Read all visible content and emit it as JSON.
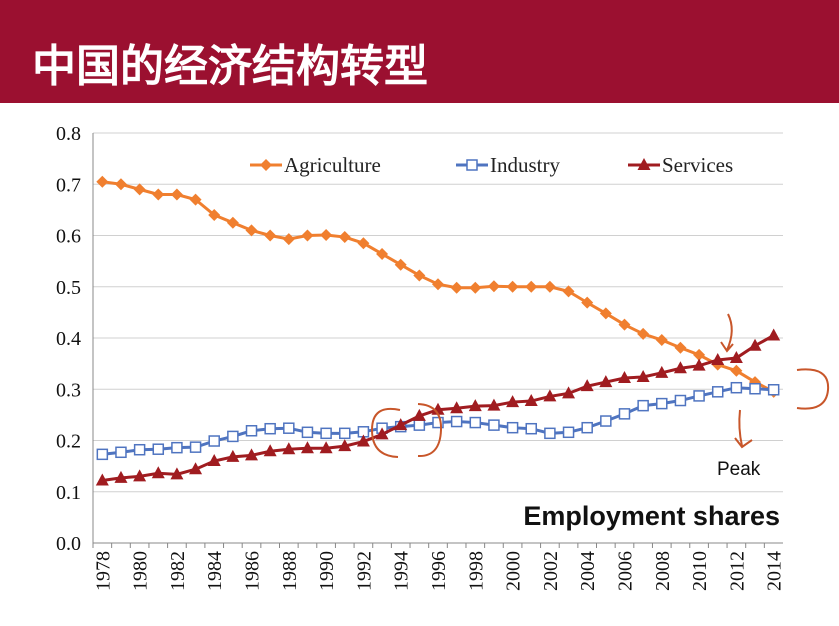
{
  "header": {
    "title": "中国的经济结构转型"
  },
  "chart_data": {
    "type": "line",
    "categories": [
      "1978",
      null,
      "1980",
      null,
      "1982",
      null,
      "1984",
      null,
      "1986",
      null,
      "1988",
      null,
      "1990",
      null,
      "1992",
      null,
      "1994",
      null,
      "1996",
      null,
      "1998",
      null,
      "2000",
      null,
      "2002",
      null,
      "2004",
      null,
      "2006",
      null,
      "2008",
      null,
      "2010",
      null,
      "2012",
      null,
      "2014"
    ],
    "series": [
      {
        "name": "Agriculture",
        "color": "#f07f2f",
        "marker": "diamond",
        "values": [
          0.705,
          0.7,
          0.69,
          0.68,
          0.68,
          0.67,
          0.64,
          0.625,
          0.61,
          0.6,
          0.593,
          0.6,
          0.601,
          0.597,
          0.585,
          0.564,
          0.543,
          0.522,
          0.505,
          0.498,
          0.498,
          0.501,
          0.5,
          0.5,
          0.5,
          0.491,
          0.469,
          0.448,
          0.426,
          0.408,
          0.396,
          0.381,
          0.367,
          0.348,
          0.336,
          0.314,
          0.295
        ]
      },
      {
        "name": "Industry",
        "color": "#4f74c0",
        "marker": "open-square",
        "values": [
          0.173,
          0.177,
          0.182,
          0.183,
          0.186,
          0.187,
          0.199,
          0.208,
          0.219,
          0.223,
          0.224,
          0.216,
          0.214,
          0.214,
          0.217,
          0.224,
          0.227,
          0.23,
          0.235,
          0.237,
          0.235,
          0.23,
          0.225,
          0.223,
          0.214,
          0.216,
          0.225,
          0.238,
          0.252,
          0.268,
          0.272,
          0.278,
          0.287,
          0.295,
          0.303,
          0.301,
          0.299
        ]
      },
      {
        "name": "Services",
        "color": "#a01c20",
        "marker": "triangle",
        "values": [
          0.122,
          0.127,
          0.13,
          0.136,
          0.134,
          0.144,
          0.16,
          0.168,
          0.171,
          0.179,
          0.183,
          0.185,
          0.185,
          0.189,
          0.198,
          0.212,
          0.23,
          0.248,
          0.26,
          0.263,
          0.267,
          0.268,
          0.275,
          0.277,
          0.286,
          0.292,
          0.306,
          0.314,
          0.322,
          0.324,
          0.332,
          0.341,
          0.346,
          0.357,
          0.361,
          0.385,
          0.405
        ]
      }
    ],
    "ylim": [
      0,
      0.8
    ],
    "yticks": [
      {
        "value": 0,
        "label": "0.0"
      },
      0.1,
      0.2,
      0.3,
      0.4,
      0.5,
      0.6,
      0.7,
      0.8
    ],
    "grid": true,
    "legend": "top",
    "annotations": [
      "Employment shares",
      "Peak"
    ]
  }
}
